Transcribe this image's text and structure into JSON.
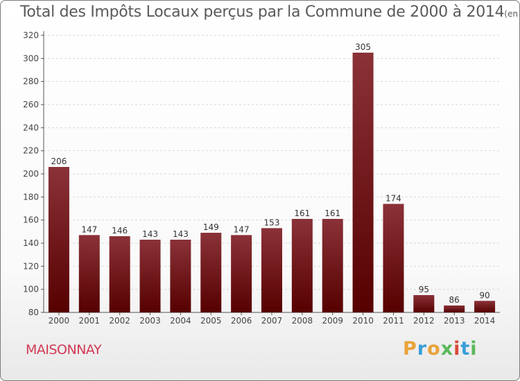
{
  "title": "Total des Impôts Locaux perçus par la Commune de 2000 à 2014",
  "title_unit": "(en milliers d'€)",
  "commune": "MAISONNAY",
  "logo": {
    "letters": [
      "P",
      "r",
      "o",
      "x",
      "i",
      "t",
      "i"
    ],
    "colors": [
      "#e8a33a",
      "#3aa0d8",
      "#e8a33a",
      "#5bb85b",
      "#d84a3a",
      "#3aa0d8",
      "#5bb85b"
    ]
  },
  "colors": {
    "bar_top": "#8a3238",
    "bar_bottom": "#560000",
    "axis": "#555555",
    "grid": "#d8d8d8"
  },
  "chart_data": {
    "type": "bar",
    "categories": [
      "2000",
      "2001",
      "2002",
      "2003",
      "2004",
      "2005",
      "2006",
      "2007",
      "2008",
      "2009",
      "2010",
      "2011",
      "2012",
      "2013",
      "2014"
    ],
    "values": [
      206,
      147,
      146,
      143,
      143,
      149,
      147,
      153,
      161,
      161,
      305,
      174,
      95,
      86,
      90
    ],
    "ylim": [
      80,
      320
    ],
    "yticks": [
      80,
      100,
      120,
      140,
      160,
      180,
      200,
      220,
      240,
      260,
      280,
      300,
      320
    ],
    "grid": "horizontal dashed",
    "xlabel": "",
    "ylabel": ""
  }
}
